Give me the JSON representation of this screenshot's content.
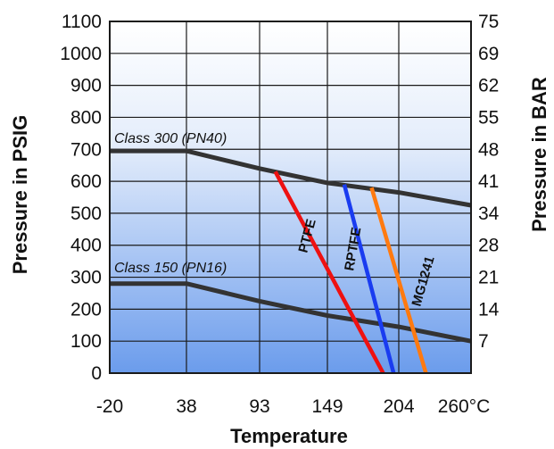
{
  "chart_data": {
    "type": "line",
    "title": "",
    "xlabel": "Temperature",
    "ylabel": "Pressure in PSIG",
    "y2label": "Pressure in BAR",
    "x_tick_labels": [
      "-20",
      "38",
      "93",
      "149",
      "204",
      "260°C"
    ],
    "y_tick_labels": [
      "0",
      "100",
      "200",
      "300",
      "400",
      "500",
      "600",
      "700",
      "800",
      "900",
      "1000",
      "1100"
    ],
    "y2_tick_labels": [
      "7",
      "14",
      "21",
      "28",
      "34",
      "41",
      "48",
      "55",
      "62",
      "69",
      "75"
    ],
    "x_ticks": [
      -20,
      38,
      93,
      149,
      204,
      260
    ],
    "xlim": [
      -20,
      260
    ],
    "ylim": [
      0,
      1100
    ],
    "grid": true,
    "background": "blue gradient",
    "series": [
      {
        "name": "Class 300 (PN40)",
        "color": "#333333",
        "x": [
          -20,
          38,
          93,
          149,
          204,
          260
        ],
        "y": [
          695,
          695,
          640,
          595,
          565,
          525
        ]
      },
      {
        "name": "Class 150 (PN16)",
        "color": "#333333",
        "x": [
          -20,
          38,
          93,
          149,
          204,
          260
        ],
        "y": [
          280,
          280,
          225,
          180,
          145,
          100
        ]
      },
      {
        "name": "PTFE",
        "color": "#ee1111",
        "x": [
          106,
          192
        ],
        "y": [
          630,
          0
        ]
      },
      {
        "name": "RPTFE",
        "color": "#1a3cf0",
        "x": [
          162,
          200
        ],
        "y": [
          590,
          0
        ]
      },
      {
        "name": "MG1241",
        "color": "#ff7a10",
        "x": [
          183,
          225
        ],
        "y": [
          580,
          0
        ]
      }
    ]
  }
}
